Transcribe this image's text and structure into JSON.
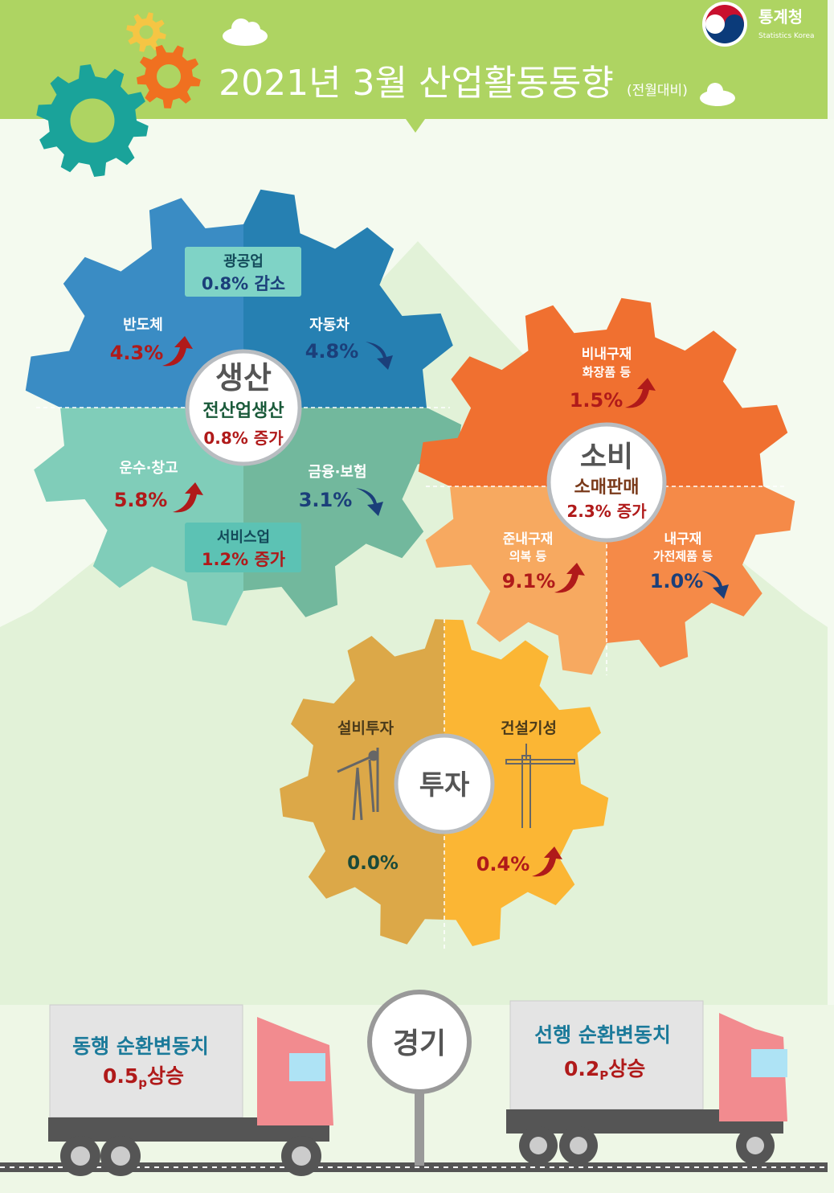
{
  "header": {
    "title": "2021년 3월 산업활동동향",
    "subtitle": "(전월대비)",
    "logo": {
      "name": "통계청",
      "english": "Statistics Korea"
    }
  },
  "colors": {
    "increase": "#b01a1a",
    "decrease": "#1b3f7a",
    "header_bg": "#aed462"
  },
  "production": {
    "title": "생산",
    "summary_label": "전산업생산",
    "summary_value": "0.8% 증가",
    "mining": {
      "label": "광공업",
      "value": "0.8% 감소"
    },
    "services": {
      "label": "서비스업",
      "value": "1.2% 증가"
    },
    "items": [
      {
        "label": "반도체",
        "value": "4.3%",
        "trend": "up"
      },
      {
        "label": "자동차",
        "value": "4.8%",
        "trend": "down"
      },
      {
        "label": "운수·창고",
        "value": "5.8%",
        "trend": "up"
      },
      {
        "label": "금융·보험",
        "value": "3.1%",
        "trend": "down"
      }
    ]
  },
  "consumption": {
    "title": "소비",
    "summary_label": "소매판매",
    "summary_value": "2.3% 증가",
    "items": [
      {
        "label": "비내구재",
        "sub": "화장품 등",
        "value": "1.5%",
        "trend": "up"
      },
      {
        "label": "준내구재",
        "sub": "의복 등",
        "value": "9.1%",
        "trend": "up"
      },
      {
        "label": "내구재",
        "sub": "가전제품 등",
        "value": "1.0%",
        "trend": "down"
      }
    ]
  },
  "investment": {
    "title": "투자",
    "items": [
      {
        "label": "설비투자",
        "value": "0.0%",
        "trend": "flat",
        "icon": "oil-pump-icon"
      },
      {
        "label": "건설기성",
        "value": "0.4%",
        "trend": "up",
        "icon": "tower-crane-icon"
      }
    ]
  },
  "economy": {
    "title": "경기",
    "coincident": {
      "label": "동행 순환변동치",
      "value": "0.5",
      "unit": "p",
      "change": "상승"
    },
    "leading": {
      "label": "선행 순환변동치",
      "value": "0.2",
      "unit": "P",
      "change": "상승"
    }
  }
}
